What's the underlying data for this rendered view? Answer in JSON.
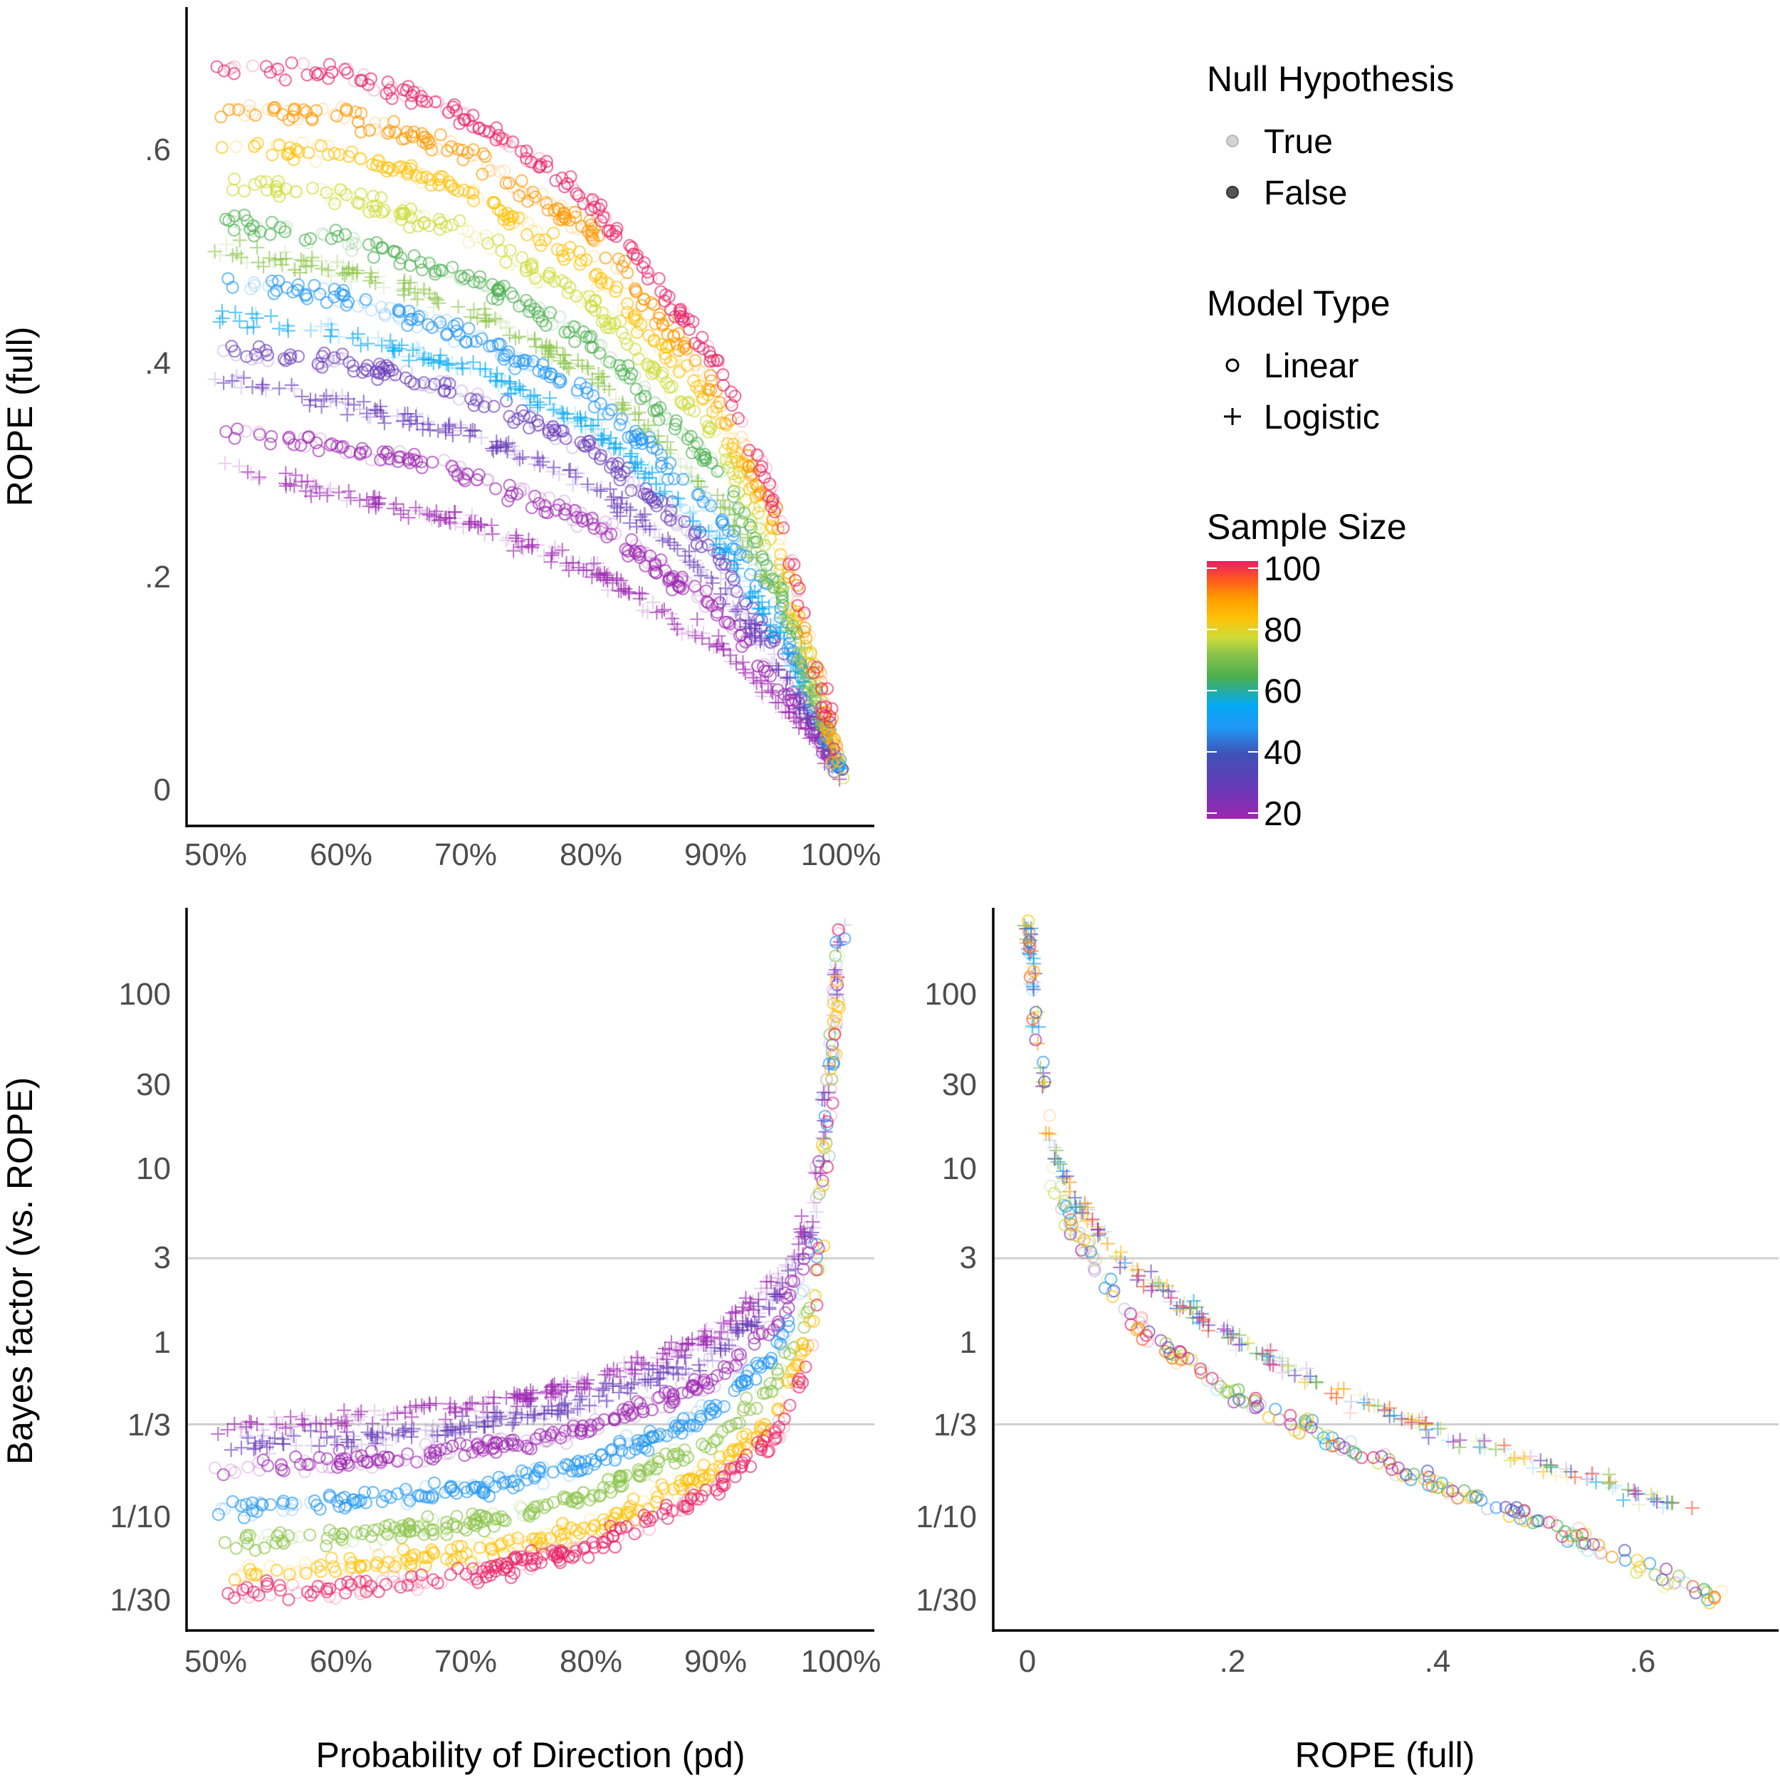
{
  "colors": {
    "palette": [
      "#9c27b0",
      "#673ab7",
      "#3f51b5",
      "#2196f3",
      "#03a9f4",
      "#4caf50",
      "#8bc34a",
      "#cddc39",
      "#ffc107",
      "#ff9800",
      "#ff5722",
      "#e91e63"
    ],
    "axis": "#000000",
    "ref_line": "#d0d0d0",
    "tick_text": "#4d4d4d"
  },
  "legend": {
    "null_hypothesis": {
      "title": "Null Hypothesis",
      "items": [
        "True",
        "False"
      ]
    },
    "model_type": {
      "title": "Model Type",
      "items": [
        "Linear",
        "Logistic"
      ]
    },
    "sample_size": {
      "title": "Sample Size",
      "ticks": [
        "100",
        "80",
        "60",
        "40",
        "20"
      ],
      "range": [
        20,
        100
      ]
    }
  },
  "chart_data": [
    {
      "id": "pd-vs-rope",
      "type": "scatter",
      "xlabel": "",
      "ylabel": "ROPE (full)",
      "xlim": [
        0.47,
        1.03
      ],
      "ylim": [
        -0.02,
        0.73
      ],
      "x_ticks": [
        {
          "value": 0.5,
          "label": "50%"
        },
        {
          "value": 0.6,
          "label": "60%"
        },
        {
          "value": 0.7,
          "label": "70%"
        },
        {
          "value": 0.8,
          "label": "80%"
        },
        {
          "value": 0.9,
          "label": "90%"
        },
        {
          "value": 1.0,
          "label": "100%"
        }
      ],
      "y_ticks": [
        {
          "value": 0,
          "label": "0"
        },
        {
          "value": 0.2,
          "label": ".2"
        },
        {
          "value": 0.4,
          "label": ".4"
        },
        {
          "value": 0.6,
          "label": ".6"
        }
      ],
      "series": [
        {
          "name": "n=20 Linear",
          "model": "Linear",
          "color": "#9c27b0",
          "points": [
            [
              0.5,
              0.33
            ],
            [
              0.6,
              0.315
            ],
            [
              0.7,
              0.29
            ],
            [
              0.8,
              0.245
            ],
            [
              0.9,
              0.165
            ],
            [
              0.95,
              0.1
            ],
            [
              1.0,
              0.01
            ]
          ]
        },
        {
          "name": "n=20 Logistic",
          "model": "Logistic",
          "color": "#9c27b0",
          "points": [
            [
              0.5,
              0.3
            ],
            [
              0.6,
              0.27
            ],
            [
              0.7,
              0.245
            ],
            [
              0.8,
              0.2
            ],
            [
              0.9,
              0.13
            ],
            [
              0.95,
              0.08
            ],
            [
              1.0,
              0.01
            ]
          ]
        },
        {
          "name": "n=30 Linear",
          "model": "Linear",
          "color": "#673ab7",
          "points": [
            [
              0.5,
              0.405
            ],
            [
              0.6,
              0.395
            ],
            [
              0.7,
              0.365
            ],
            [
              0.8,
              0.315
            ],
            [
              0.9,
              0.215
            ],
            [
              0.95,
              0.13
            ],
            [
              1.0,
              0.01
            ]
          ]
        },
        {
          "name": "n=30 Logistic",
          "model": "Logistic",
          "color": "#673ab7",
          "points": [
            [
              0.5,
              0.38
            ],
            [
              0.6,
              0.355
            ],
            [
              0.7,
              0.33
            ],
            [
              0.8,
              0.28
            ],
            [
              0.9,
              0.19
            ],
            [
              0.95,
              0.11
            ],
            [
              1.0,
              0.01
            ]
          ]
        },
        {
          "name": "n=40 Linear",
          "model": "Linear",
          "color": "#2196f3",
          "points": [
            [
              0.5,
              0.47
            ],
            [
              0.6,
              0.455
            ],
            [
              0.7,
              0.42
            ],
            [
              0.8,
              0.365
            ],
            [
              0.9,
              0.255
            ],
            [
              0.95,
              0.16
            ],
            [
              1.0,
              0.01
            ]
          ]
        },
        {
          "name": "n=40 Logistic",
          "model": "Logistic",
          "color": "#03a9f4",
          "points": [
            [
              0.5,
              0.44
            ],
            [
              0.6,
              0.42
            ],
            [
              0.7,
              0.39
            ],
            [
              0.8,
              0.335
            ],
            [
              0.9,
              0.23
            ],
            [
              0.95,
              0.14
            ],
            [
              1.0,
              0.01
            ]
          ]
        },
        {
          "name": "n=60 Linear",
          "model": "Linear",
          "color": "#4caf50",
          "points": [
            [
              0.5,
              0.525
            ],
            [
              0.6,
              0.51
            ],
            [
              0.7,
              0.475
            ],
            [
              0.8,
              0.415
            ],
            [
              0.9,
              0.295
            ],
            [
              0.95,
              0.185
            ],
            [
              1.0,
              0.01
            ]
          ]
        },
        {
          "name": "n=60 Logistic",
          "model": "Logistic",
          "color": "#8bc34a",
          "points": [
            [
              0.5,
              0.5
            ],
            [
              0.6,
              0.48
            ],
            [
              0.7,
              0.445
            ],
            [
              0.8,
              0.385
            ],
            [
              0.9,
              0.27
            ],
            [
              0.95,
              0.17
            ],
            [
              1.0,
              0.01
            ]
          ]
        },
        {
          "name": "n=70 Linear",
          "model": "Linear",
          "color": "#cddc39",
          "points": [
            [
              0.5,
              0.565
            ],
            [
              0.6,
              0.55
            ],
            [
              0.7,
              0.515
            ],
            [
              0.8,
              0.45
            ],
            [
              0.9,
              0.325
            ],
            [
              0.95,
              0.205
            ],
            [
              1.0,
              0.01
            ]
          ]
        },
        {
          "name": "n=80 Linear",
          "model": "Linear",
          "color": "#ffc107",
          "points": [
            [
              0.5,
              0.6
            ],
            [
              0.6,
              0.59
            ],
            [
              0.7,
              0.555
            ],
            [
              0.8,
              0.485
            ],
            [
              0.9,
              0.35
            ],
            [
              0.95,
              0.225
            ],
            [
              1.0,
              0.01
            ]
          ]
        },
        {
          "name": "n=90 Linear",
          "model": "Linear",
          "color": "#ff9800",
          "points": [
            [
              0.5,
              0.63
            ],
            [
              0.6,
              0.625
            ],
            [
              0.7,
              0.59
            ],
            [
              0.8,
              0.515
            ],
            [
              0.9,
              0.37
            ],
            [
              0.95,
              0.24
            ],
            [
              1.0,
              0.01
            ]
          ]
        },
        {
          "name": "n=100 Linear",
          "model": "Linear",
          "color": "#e91e63",
          "points": [
            [
              0.5,
              0.67
            ],
            [
              0.6,
              0.665
            ],
            [
              0.7,
              0.625
            ],
            [
              0.8,
              0.545
            ],
            [
              0.9,
              0.395
            ],
            [
              0.95,
              0.255
            ],
            [
              1.0,
              0.01
            ]
          ]
        }
      ]
    },
    {
      "id": "pd-vs-bf",
      "type": "scatter",
      "xlabel": "Probability of Direction (pd)",
      "ylabel": "Bayes factor (vs. ROPE)",
      "y_scale": "log10",
      "xlim": [
        0.47,
        1.03
      ],
      "ylim": [
        0.02,
        250
      ],
      "x_ticks": [
        {
          "value": 0.5,
          "label": "50%"
        },
        {
          "value": 0.6,
          "label": "60%"
        },
        {
          "value": 0.7,
          "label": "70%"
        },
        {
          "value": 0.8,
          "label": "80%"
        },
        {
          "value": 0.9,
          "label": "90%"
        },
        {
          "value": 1.0,
          "label": "100%"
        }
      ],
      "y_ticks": [
        {
          "value": 100,
          "label": "100"
        },
        {
          "value": 30,
          "label": "30"
        },
        {
          "value": 10,
          "label": "10"
        },
        {
          "value": 3,
          "label": "3"
        },
        {
          "value": 1,
          "label": "1"
        },
        {
          "value": 0.3333,
          "label": "1/3"
        },
        {
          "value": 0.1,
          "label": "1/10"
        },
        {
          "value": 0.0333,
          "label": "1/30"
        }
      ],
      "ref_lines": [
        3,
        0.3333
      ],
      "series": [
        {
          "name": "n=20 Logistic",
          "model": "Logistic",
          "color": "#9c27b0",
          "points": [
            [
              0.5,
              0.33
            ],
            [
              0.6,
              0.35
            ],
            [
              0.7,
              0.42
            ],
            [
              0.8,
              0.58
            ],
            [
              0.9,
              1.1
            ],
            [
              0.95,
              2.2
            ],
            [
              0.98,
              6
            ],
            [
              1.0,
              250
            ]
          ]
        },
        {
          "name": "n=30 Logistic",
          "model": "Logistic",
          "color": "#673ab7",
          "points": [
            [
              0.5,
              0.25
            ],
            [
              0.6,
              0.27
            ],
            [
              0.7,
              0.32
            ],
            [
              0.8,
              0.45
            ],
            [
              0.9,
              0.85
            ],
            [
              0.95,
              1.8
            ],
            [
              0.98,
              5
            ],
            [
              1.0,
              250
            ]
          ]
        },
        {
          "name": "n=20 Linear",
          "model": "Linear",
          "color": "#9c27b0",
          "points": [
            [
              0.5,
              0.18
            ],
            [
              0.6,
              0.2
            ],
            [
              0.7,
              0.23
            ],
            [
              0.8,
              0.32
            ],
            [
              0.9,
              0.6
            ],
            [
              0.95,
              1.3
            ],
            [
              0.98,
              4
            ],
            [
              1.0,
              250
            ]
          ]
        },
        {
          "name": "n=40 Linear",
          "model": "Linear",
          "color": "#2196f3",
          "points": [
            [
              0.5,
              0.11
            ],
            [
              0.6,
              0.12
            ],
            [
              0.7,
              0.14
            ],
            [
              0.8,
              0.2
            ],
            [
              0.9,
              0.4
            ],
            [
              0.95,
              0.9
            ],
            [
              0.98,
              3
            ],
            [
              1.0,
              250
            ]
          ]
        },
        {
          "name": "n=60 Linear",
          "model": "Linear",
          "color": "#8bc34a",
          "points": [
            [
              0.5,
              0.07
            ],
            [
              0.6,
              0.075
            ],
            [
              0.7,
              0.09
            ],
            [
              0.8,
              0.13
            ],
            [
              0.9,
              0.27
            ],
            [
              0.95,
              0.6
            ],
            [
              0.98,
              2
            ],
            [
              1.0,
              250
            ]
          ]
        },
        {
          "name": "n=80 Linear",
          "model": "Linear",
          "color": "#ffc107",
          "points": [
            [
              0.5,
              0.045
            ],
            [
              0.6,
              0.05
            ],
            [
              0.7,
              0.06
            ],
            [
              0.8,
              0.085
            ],
            [
              0.9,
              0.18
            ],
            [
              0.95,
              0.4
            ],
            [
              0.98,
              1.5
            ],
            [
              1.0,
              250
            ]
          ]
        },
        {
          "name": "n=100 Linear",
          "model": "Linear",
          "color": "#e91e63",
          "points": [
            [
              0.5,
              0.035
            ],
            [
              0.6,
              0.038
            ],
            [
              0.7,
              0.045
            ],
            [
              0.8,
              0.065
            ],
            [
              0.9,
              0.14
            ],
            [
              0.95,
              0.3
            ],
            [
              0.98,
              1.1
            ],
            [
              1.0,
              250
            ]
          ]
        }
      ]
    },
    {
      "id": "rope-vs-bf",
      "type": "scatter",
      "xlabel": "ROPE (full)",
      "ylabel": "",
      "y_scale": "log10",
      "xlim": [
        -0.03,
        0.73
      ],
      "ylim": [
        0.02,
        250
      ],
      "x_ticks": [
        {
          "value": 0,
          "label": "0"
        },
        {
          "value": 0.2,
          "label": ".2"
        },
        {
          "value": 0.4,
          "label": ".4"
        },
        {
          "value": 0.6,
          "label": ".6"
        }
      ],
      "y_ticks": [
        {
          "value": 100,
          "label": "100"
        },
        {
          "value": 30,
          "label": "30"
        },
        {
          "value": 10,
          "label": "10"
        },
        {
          "value": 3,
          "label": "3"
        },
        {
          "value": 1,
          "label": "1"
        },
        {
          "value": 0.3333,
          "label": "1/3"
        },
        {
          "value": 0.1,
          "label": "1/10"
        },
        {
          "value": 0.0333,
          "label": "1/30"
        }
      ],
      "ref_lines": [
        3,
        0.3333
      ],
      "series": [
        {
          "name": "Logistic",
          "model": "Logistic",
          "color": "#4caf50",
          "points": [
            [
              0.0,
              250
            ],
            [
              0.02,
              15
            ],
            [
              0.05,
              6
            ],
            [
              0.1,
              2.6
            ],
            [
              0.2,
              1.05
            ],
            [
              0.3,
              0.5
            ],
            [
              0.4,
              0.3
            ],
            [
              0.5,
              0.2
            ],
            [
              0.6,
              0.13
            ],
            [
              0.66,
              0.1
            ]
          ]
        },
        {
          "name": "Linear",
          "model": "Linear",
          "color": "#2196f3",
          "points": [
            [
              0.0,
              250
            ],
            [
              0.02,
              10
            ],
            [
              0.05,
              4
            ],
            [
              0.1,
              1.3
            ],
            [
              0.2,
              0.5
            ],
            [
              0.3,
              0.26
            ],
            [
              0.4,
              0.15
            ],
            [
              0.5,
              0.09
            ],
            [
              0.6,
              0.05
            ],
            [
              0.68,
              0.032
            ]
          ]
        }
      ]
    }
  ]
}
